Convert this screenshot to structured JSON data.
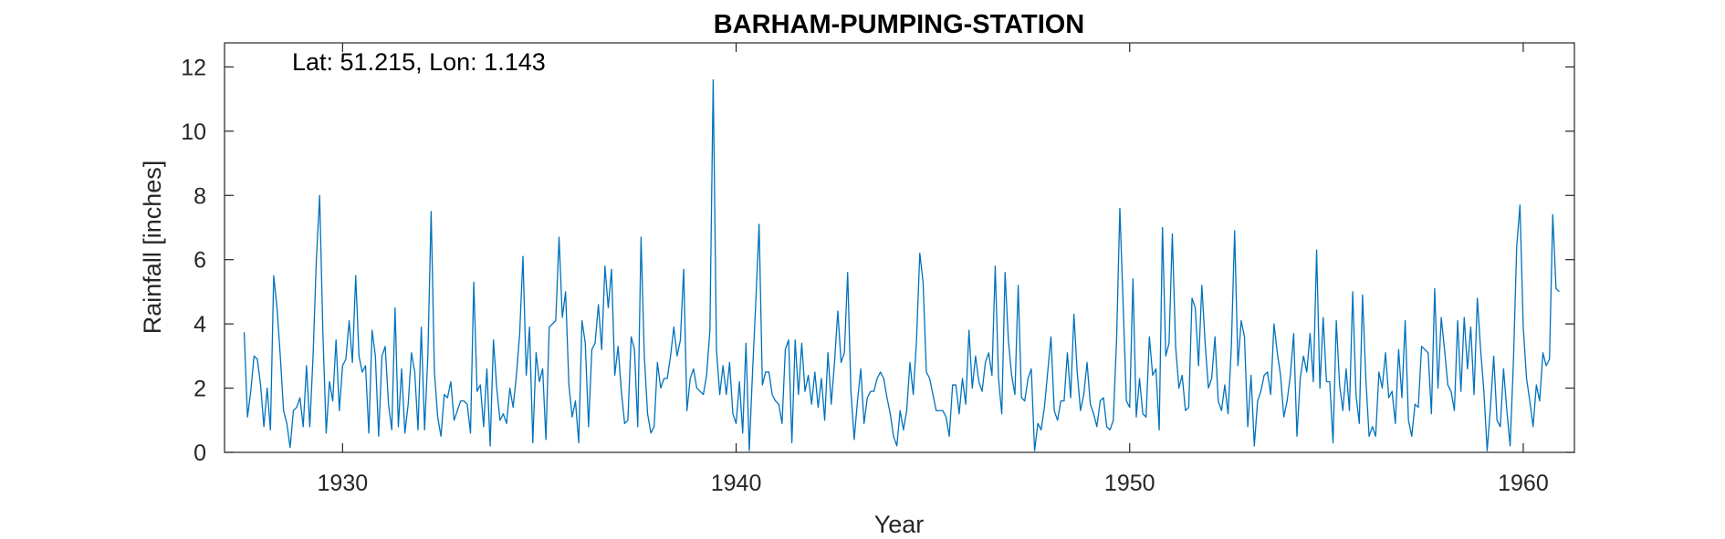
{
  "chart_data": {
    "type": "line",
    "title": "BARHAM-PUMPING-STATION",
    "xlabel": "Year",
    "ylabel": "Rainfall [inches]",
    "annotation": "Lat: 51.215, Lon: 1.143",
    "xlim": [
      1927.0,
      1961.3
    ],
    "ylim": [
      0,
      12.75
    ],
    "xticks": [
      1930,
      1940,
      1950,
      1960
    ],
    "xtick_labels": [
      "1930",
      "1940",
      "1950",
      "1960"
    ],
    "yticks": [
      0,
      2,
      4,
      6,
      8,
      10,
      12
    ],
    "ytick_labels": [
      "0",
      "2",
      "4",
      "6",
      "8",
      "10",
      "12"
    ],
    "grid": false,
    "line_color": "#0072BD",
    "series": [
      {
        "x_start": "1927-07",
        "x_step_months": 1,
        "values": [
          3.74,
          1.1,
          1.9,
          3.0,
          2.9,
          2.1,
          0.8,
          2.0,
          0.7,
          5.5,
          4.5,
          3.0,
          1.3,
          0.9,
          0.15,
          1.3,
          1.4,
          1.7,
          0.8,
          2.7,
          0.8,
          3.0,
          6.0,
          8.0,
          3.7,
          0.6,
          2.2,
          1.6,
          3.5,
          1.3,
          2.7,
          2.9,
          4.1,
          2.8,
          5.5,
          3.0,
          2.5,
          2.7,
          0.6,
          3.8,
          3.0,
          0.5,
          3.0,
          3.3,
          1.5,
          0.7,
          4.5,
          0.8,
          2.6,
          0.6,
          1.5,
          3.1,
          2.5,
          0.7,
          3.9,
          0.7,
          3.0,
          7.5,
          2.5,
          1.1,
          0.5,
          1.8,
          1.7,
          2.2,
          1.0,
          1.3,
          1.6,
          1.6,
          1.5,
          0.6,
          5.3,
          1.9,
          2.1,
          0.8,
          2.6,
          0.2,
          3.5,
          2.0,
          1.0,
          1.2,
          0.9,
          2.0,
          1.4,
          2.4,
          3.7,
          6.1,
          2.4,
          3.9,
          0.3,
          3.1,
          2.2,
          2.6,
          0.4,
          3.9,
          4.0,
          4.1,
          6.7,
          4.2,
          5.0,
          2.1,
          1.1,
          1.6,
          0.3,
          4.1,
          3.4,
          0.8,
          3.2,
          3.4,
          4.6,
          3.2,
          5.8,
          4.5,
          5.7,
          2.4,
          3.3,
          1.9,
          0.9,
          1.0,
          3.6,
          3.2,
          0.8,
          6.7,
          3.0,
          1.2,
          0.6,
          0.8,
          2.8,
          2.0,
          2.3,
          2.3,
          3.0,
          3.9,
          3.0,
          3.5,
          5.7,
          1.3,
          2.3,
          2.6,
          2.0,
          1.9,
          1.8,
          2.4,
          3.8,
          11.6,
          3.2,
          1.8,
          2.7,
          1.8,
          2.8,
          1.2,
          0.9,
          2.2,
          0.6,
          3.4,
          0.05,
          2.5,
          4.7,
          7.1,
          2.1,
          2.5,
          2.5,
          1.8,
          1.6,
          1.5,
          0.9,
          3.2,
          3.5,
          0.3,
          3.5,
          1.8,
          3.4,
          1.9,
          2.4,
          1.5,
          2.5,
          1.4,
          2.3,
          1.0,
          3.1,
          1.5,
          2.8,
          4.4,
          2.8,
          3.1,
          5.6,
          1.9,
          0.4,
          1.6,
          2.6,
          0.9,
          1.7,
          1.9,
          1.9,
          2.3,
          2.5,
          2.3,
          1.7,
          1.2,
          0.5,
          0.2,
          1.3,
          0.7,
          1.3,
          2.8,
          1.8,
          3.5,
          6.2,
          5.3,
          2.5,
          2.3,
          1.8,
          1.3,
          1.3,
          1.3,
          1.1,
          0.5,
          2.1,
          2.1,
          1.2,
          2.3,
          1.5,
          3.8,
          2.0,
          3.0,
          2.2,
          1.9,
          2.8,
          3.1,
          2.4,
          5.8,
          2.3,
          1.2,
          5.6,
          3.5,
          2.4,
          1.8,
          5.2,
          1.7,
          1.6,
          2.3,
          2.6,
          0.05,
          0.9,
          0.7,
          1.4,
          2.5,
          3.6,
          1.3,
          1.0,
          1.6,
          1.6,
          3.1,
          1.7,
          4.3,
          2.5,
          1.3,
          1.8,
          2.8,
          1.5,
          1.2,
          0.8,
          1.6,
          1.7,
          0.8,
          0.7,
          1.0,
          3.5,
          7.6,
          4.6,
          1.6,
          1.4,
          5.4,
          1.1,
          2.3,
          1.2,
          1.1,
          3.6,
          2.4,
          2.6,
          0.7,
          7.0,
          3.0,
          3.4,
          6.8,
          3.3,
          2.0,
          2.4,
          1.3,
          1.4,
          4.8,
          4.5,
          2.7,
          5.2,
          3.4,
          2.0,
          2.3,
          3.6,
          1.6,
          1.3,
          2.1,
          1.2,
          3.3,
          6.9,
          2.7,
          4.1,
          3.6,
          0.8,
          2.4,
          0.2,
          1.6,
          1.9,
          2.4,
          2.5,
          1.8,
          4.0,
          3.1,
          2.4,
          1.1,
          1.6,
          2.4,
          3.7,
          0.5,
          2.3,
          3.0,
          2.5,
          3.7,
          2.2,
          6.3,
          2.0,
          4.2,
          2.2,
          2.2,
          0.3,
          4.1,
          2.1,
          1.3,
          2.6,
          1.3,
          5.0,
          1.8,
          0.9,
          4.9,
          2.3,
          0.5,
          0.8,
          0.5,
          2.5,
          2.0,
          3.1,
          1.7,
          1.9,
          0.9,
          3.2,
          1.7,
          4.1,
          1.0,
          0.5,
          1.5,
          1.4,
          3.3,
          3.2,
          3.1,
          1.2,
          5.1,
          2.0,
          4.2,
          3.2,
          2.1,
          1.9,
          1.3,
          4.1,
          1.9,
          4.2,
          2.6,
          3.9,
          1.8,
          4.8,
          3.2,
          1.9,
          0.05,
          1.4,
          3.0,
          1.0,
          0.8,
          2.6,
          1.3,
          0.2,
          2.8,
          6.4,
          7.7,
          3.9,
          2.3,
          1.6,
          0.8,
          2.1,
          1.6,
          3.1,
          2.7,
          2.9,
          7.4,
          5.1,
          5.0
        ]
      }
    ]
  }
}
